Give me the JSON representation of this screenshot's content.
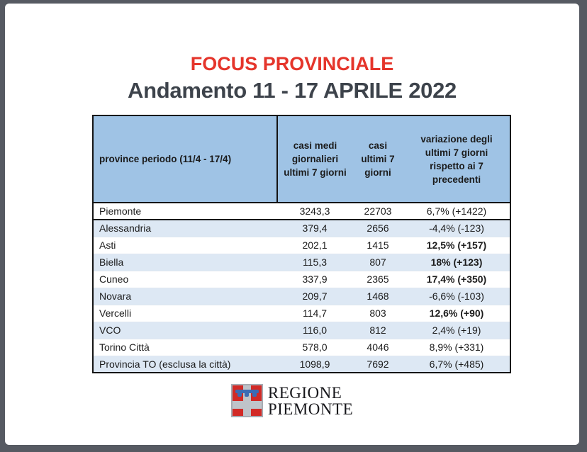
{
  "title": "FOCUS PROVINCIALE",
  "subtitle": "Andamento 11 - 17 APRILE 2022",
  "colors": {
    "title_red": "#e5352b",
    "subtitle_gray": "#3d434b",
    "header_blue": "#9fc3e5",
    "row_alt_blue": "#dde8f4",
    "frame_slate": "#565a62",
    "table_text": "#1b1b1b",
    "logo_red": "#d22a26",
    "logo_silver": "#bfc3c9",
    "logo_blue": "#3b6cb4"
  },
  "table": {
    "headers": [
      "province periodo (11/4 - 17/4)",
      "casi medi giornalieri ultimi 7 giorni",
      "casi ultimi 7 giorni",
      "variazione degli ultimi 7 giorni rispetto ai 7 precedenti"
    ],
    "rows": [
      {
        "province": "Piemonte",
        "avg7": "3243,3",
        "cases7": "22703",
        "variation": "6,7% (+1422)",
        "bold": false
      },
      {
        "province": "Alessandria",
        "avg7": "379,4",
        "cases7": "2656",
        "variation": "-4,4% (-123)",
        "bold": false
      },
      {
        "province": "Asti",
        "avg7": "202,1",
        "cases7": "1415",
        "variation": "12,5% (+157)",
        "bold": true
      },
      {
        "province": "Biella",
        "avg7": "115,3",
        "cases7": "807",
        "variation": "18% (+123)",
        "bold": true
      },
      {
        "province": "Cuneo",
        "avg7": "337,9",
        "cases7": "2365",
        "variation": "17,4% (+350)",
        "bold": true
      },
      {
        "province": "Novara",
        "avg7": "209,7",
        "cases7": "1468",
        "variation": "-6,6% (-103)",
        "bold": false
      },
      {
        "province": "Vercelli",
        "avg7": "114,7",
        "cases7": "803",
        "variation": "12,6% (+90)",
        "bold": true
      },
      {
        "province": "VCO",
        "avg7": "116,0",
        "cases7": "812",
        "variation": "2,4% (+19)",
        "bold": false
      },
      {
        "province": "Torino Città",
        "avg7": "578,0",
        "cases7": "4046",
        "variation": "8,9% (+331)",
        "bold": false
      },
      {
        "province": "Provincia TO (esclusa la città)",
        "avg7": "1098,9",
        "cases7": "7692",
        "variation": "6,7% (+485)",
        "bold": false
      }
    ]
  },
  "footer": {
    "logo_line1": "REGIONE",
    "logo_line2": "PIEMONTE",
    "shield_icon": "regione-piemonte-shield"
  },
  "chart_data": {
    "type": "table",
    "title": "FOCUS PROVINCIALE — Andamento 11 - 17 APRILE 2022",
    "columns": [
      "province periodo (11/4 - 17/4)",
      "casi medi giornalieri ultimi 7 giorni",
      "casi ultimi 7 giorni",
      "variazione degli ultimi 7 giorni rispetto ai 7 precedenti"
    ],
    "rows": [
      [
        "Piemonte",
        3243.3,
        22703,
        "6,7% (+1422)"
      ],
      [
        "Alessandria",
        379.4,
        2656,
        "-4,4% (-123)"
      ],
      [
        "Asti",
        202.1,
        1415,
        "12,5% (+157)"
      ],
      [
        "Biella",
        115.3,
        807,
        "18% (+123)"
      ],
      [
        "Cuneo",
        337.9,
        2365,
        "17,4% (+350)"
      ],
      [
        "Novara",
        209.7,
        1468,
        "-6,6% (-103)"
      ],
      [
        "Vercelli",
        114.7,
        803,
        "12,6% (+90)"
      ],
      [
        "VCO",
        116.0,
        812,
        "2,4% (+19)"
      ],
      [
        "Torino Città",
        578.0,
        4046,
        "8,9% (+331)"
      ],
      [
        "Provincia TO (esclusa la città)",
        1098.9,
        7692,
        "6,7% (+485)"
      ]
    ]
  }
}
